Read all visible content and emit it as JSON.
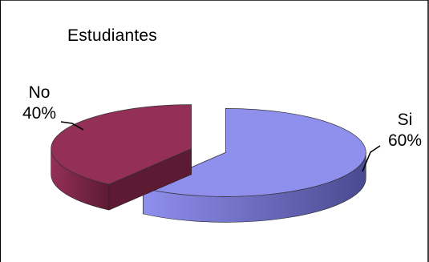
{
  "chart_data": {
    "type": "pie",
    "style": "3d-exploded",
    "title": "Estudiantes",
    "slices": [
      {
        "label": "Si",
        "value": 60,
        "percent_label": "60%",
        "color": "#8f8fee",
        "side_color": "#4a4a90"
      },
      {
        "label": "No",
        "value": 40,
        "percent_label": "40%",
        "color": "#943058",
        "side_color": "#5c1a33"
      }
    ],
    "legend": "none",
    "frame_color": "#000000"
  }
}
